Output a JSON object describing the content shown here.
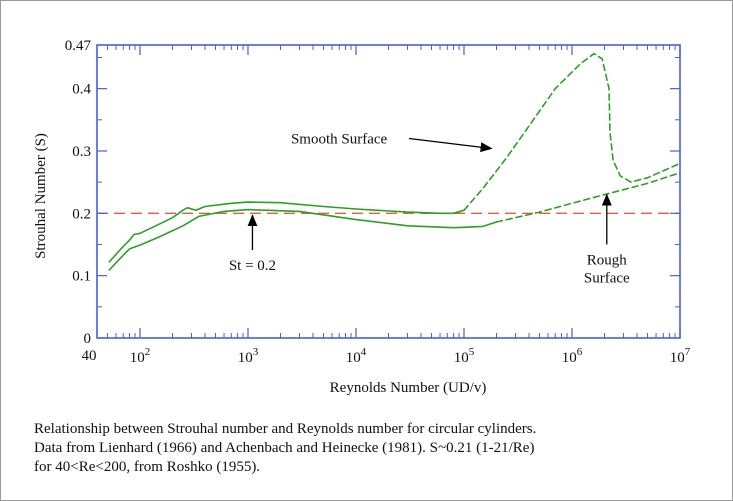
{
  "chart_data": {
    "type": "line",
    "xlabel": "Reynolds Number (UD/v)",
    "ylabel": "Strouhal Number (S)",
    "xscale": "log",
    "xlim": [
      40,
      10000000
    ],
    "ylim": [
      0,
      0.47
    ],
    "x_ticks": [
      {
        "value": 40,
        "base": "40",
        "exp": ""
      },
      {
        "value": 100,
        "base": "10",
        "exp": "2"
      },
      {
        "value": 1000,
        "base": "10",
        "exp": "3"
      },
      {
        "value": 10000,
        "base": "10",
        "exp": "4"
      },
      {
        "value": 100000,
        "base": "10",
        "exp": "5"
      },
      {
        "value": 1000000,
        "base": "10",
        "exp": "6"
      },
      {
        "value": 10000000,
        "base": "10",
        "exp": "7"
      }
    ],
    "y_ticks": [
      {
        "value": 0,
        "label": "0"
      },
      {
        "value": 0.1,
        "label": "0.1"
      },
      {
        "value": 0.2,
        "label": "0.2"
      },
      {
        "value": 0.3,
        "label": "0.3"
      },
      {
        "value": 0.4,
        "label": "0.4"
      },
      {
        "value": 0.47,
        "label": "0.47"
      }
    ],
    "grid": false,
    "colors": {
      "curve": "#2e9e25",
      "reference": "#e0603f",
      "axis": "#4a5fd6"
    },
    "reference_line": {
      "y": 0.2,
      "label": "St = 0.2"
    },
    "series": [
      {
        "style": "solid",
        "points": [
          [
            52,
            0.122
          ],
          [
            65,
            0.141
          ],
          [
            80,
            0.157
          ],
          [
            88,
            0.166
          ],
          [
            100,
            0.168
          ],
          [
            140,
            0.18
          ],
          [
            200,
            0.193
          ],
          [
            250,
            0.205
          ],
          [
            275,
            0.209
          ],
          [
            300,
            0.207
          ],
          [
            330,
            0.205
          ],
          [
            400,
            0.211
          ],
          [
            700,
            0.216
          ],
          [
            1000,
            0.218
          ],
          [
            2000,
            0.217
          ],
          [
            5000,
            0.211
          ],
          [
            10000,
            0.207
          ],
          [
            30000,
            0.202
          ],
          [
            60000,
            0.2
          ],
          [
            80000,
            0.2
          ],
          [
            100000,
            0.205
          ]
        ]
      },
      {
        "style": "dashed",
        "points": [
          [
            100000,
            0.205
          ],
          [
            150000,
            0.24
          ],
          [
            250000,
            0.29
          ],
          [
            400000,
            0.34
          ],
          [
            700000,
            0.4
          ],
          [
            1200000,
            0.44
          ],
          [
            1600000,
            0.456
          ],
          [
            1900000,
            0.448
          ],
          [
            2200000,
            0.4
          ],
          [
            2250000,
            0.33
          ],
          [
            2400000,
            0.285
          ],
          [
            2800000,
            0.26
          ],
          [
            3500000,
            0.25
          ],
          [
            5000000,
            0.257
          ],
          [
            10000000,
            0.28
          ]
        ]
      },
      {
        "style": "solid",
        "points": [
          [
            52,
            0.109
          ],
          [
            65,
            0.127
          ],
          [
            80,
            0.143
          ],
          [
            100,
            0.149
          ],
          [
            150,
            0.162
          ],
          [
            250,
            0.18
          ],
          [
            350,
            0.195
          ],
          [
            600,
            0.203
          ],
          [
            1000,
            0.206
          ],
          [
            3000,
            0.203
          ],
          [
            10000,
            0.19
          ],
          [
            30000,
            0.18
          ],
          [
            80000,
            0.177
          ],
          [
            150000,
            0.179
          ],
          [
            200000,
            0.186
          ]
        ]
      },
      {
        "style": "dashed",
        "points": [
          [
            200000,
            0.186
          ],
          [
            500000,
            0.202
          ],
          [
            1000000,
            0.216
          ],
          [
            2000000,
            0.23
          ],
          [
            5000000,
            0.248
          ],
          [
            10000000,
            0.265
          ]
        ]
      }
    ],
    "annotations": [
      {
        "text": "Smooth Surface",
        "lines": [
          "Smooth Surface"
        ],
        "at": [
          180000,
          0.304
        ],
        "text_at": [
          2500,
          0.312
        ],
        "anchor": "start"
      },
      {
        "text": "St = 0.2",
        "lines": [
          "St = 0.2"
        ],
        "at": [
          1100,
          0.197
        ],
        "text_at": [
          1100,
          0.109
        ],
        "anchor": "middle"
      },
      {
        "text": "Rough Surface",
        "lines": [
          "Rough",
          "Surface"
        ],
        "at": [
          2100000,
          0.23
        ],
        "text_at": [
          2100000,
          0.118
        ],
        "anchor": "middle"
      }
    ]
  },
  "caption": {
    "lines": [
      "Relationship between Strouhal number and Reynolds number for circular cylinders.",
      "Data from Lienhard (1966) and Achenbach and Heinecke (1981). S~0.21 (1-21/Re)",
      "for 40<Re<200, from Roshko (1955)."
    ]
  }
}
